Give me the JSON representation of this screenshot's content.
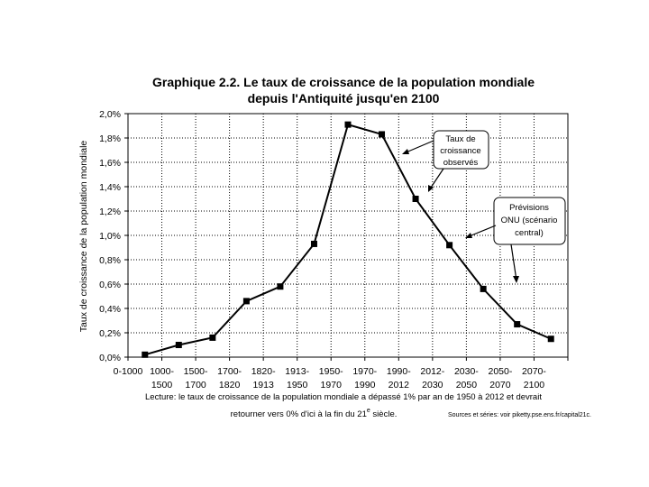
{
  "chart_data": {
    "type": "line",
    "title_line1": "Graphique 2.2. Le taux de croissance de la population mondiale",
    "title_line2": "depuis l'Antiquité jusqu'en 2100",
    "ylabel": "Taux de croissance de la population mondiale",
    "xlabel": "",
    "ylim": [
      0,
      2.0
    ],
    "yticks": [
      0,
      0.2,
      0.4,
      0.6,
      0.8,
      1.0,
      1.2,
      1.4,
      1.6,
      1.8,
      2.0
    ],
    "ytick_labels": [
      "0,0%",
      "0,2%",
      "0,4%",
      "0,6%",
      "0,8%",
      "1,0%",
      "1,2%",
      "1,4%",
      "1,6%",
      "1,8%",
      "2,0%"
    ],
    "grid": true,
    "categories": [
      {
        "top": "0-1000",
        "bottom": ""
      },
      {
        "top": "1000-",
        "bottom": "1500"
      },
      {
        "top": "1500-",
        "bottom": "1700"
      },
      {
        "top": "1700-",
        "bottom": "1820"
      },
      {
        "top": "1820-",
        "bottom": "1913"
      },
      {
        "top": "1913-",
        "bottom": "1950"
      },
      {
        "top": "1950-",
        "bottom": "1970"
      },
      {
        "top": "1970-",
        "bottom": "1990"
      },
      {
        "top": "1990-",
        "bottom": "2012"
      },
      {
        "top": "2012-",
        "bottom": "2030"
      },
      {
        "top": "2030-",
        "bottom": "2050"
      },
      {
        "top": "2050-",
        "bottom": "2070"
      },
      {
        "top": "2070-",
        "bottom": "2100"
      }
    ],
    "series": [
      {
        "name": "Taux de croissance de la population mondiale",
        "values": [
          0.02,
          0.1,
          0.16,
          0.46,
          0.58,
          0.93,
          1.91,
          1.83,
          1.3,
          0.92,
          0.56,
          0.27,
          0.15
        ]
      }
    ],
    "annotations": [
      {
        "name": "observes",
        "lines": [
          "Taux de",
          "croissance",
          "observés"
        ]
      },
      {
        "name": "previsions",
        "lines": [
          "Prévisions",
          "ONU (scénario",
          "central)"
        ]
      }
    ],
    "note_line1": "Lecture: le taux de croissance de la population mondiale a dépassé 1% par an de 1950 à 2012 et devrait",
    "note_line2_main": "retourner vers 0% d'ici à la fin du 21",
    "note_line2_sup": "e",
    "note_line2_end": " siècle.",
    "note_source": "Sources et séries: voir piketty.pse.ens.fr/capital21c."
  }
}
